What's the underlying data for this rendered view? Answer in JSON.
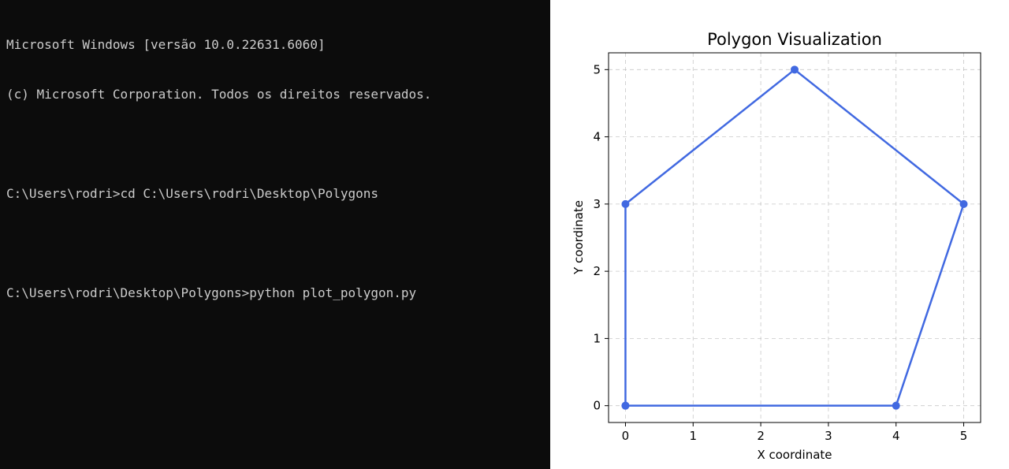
{
  "terminal": {
    "lines": [
      "Microsoft Windows [versão 10.0.22631.6060]",
      "(c) Microsoft Corporation. Todos os direitos reservados.",
      "",
      "C:\\Users\\rodri>cd C:\\Users\\rodri\\Desktop\\Polygons",
      "",
      "C:\\Users\\rodri\\Desktop\\Polygons>python plot_polygon.py"
    ],
    "background": "#0c0c0c",
    "text_color": "#cccccc"
  },
  "chart_data": {
    "type": "line",
    "title": "Polygon Visualization",
    "xlabel": "X coordinate",
    "ylabel": "Y coordinate",
    "x": [
      0,
      4,
      5,
      2.5,
      0,
      0
    ],
    "y": [
      0,
      0,
      3,
      5,
      3,
      0
    ],
    "xlim": [
      -0.25,
      5.25
    ],
    "ylim": [
      -0.25,
      5.25
    ],
    "xticks": [
      "0",
      "1",
      "2",
      "3",
      "4",
      "5"
    ],
    "yticks": [
      "0",
      "1",
      "2",
      "3",
      "4",
      "5"
    ],
    "grid": true,
    "color": "#4169e1"
  }
}
